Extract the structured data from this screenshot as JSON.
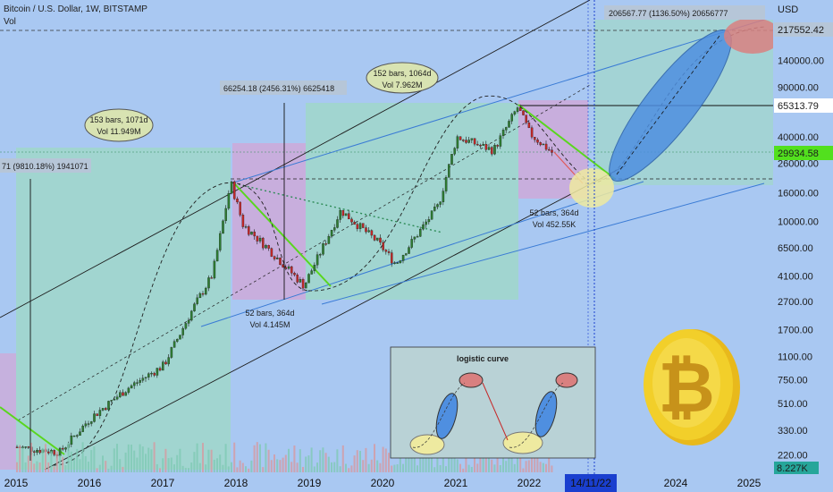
{
  "header": {
    "title": "Bitcoin / U.S. Dollar, 1W, BITSTAMP",
    "volume_label": "Vol"
  },
  "axis": {
    "currency": "USD",
    "price_ticks": [
      "140000.00",
      "90000.00",
      "40000.00",
      "26000.00",
      "16000.00",
      "10000.00",
      "6500.00",
      "4100.00",
      "2700.00",
      "1700.00",
      "1100.00",
      "750.00",
      "510.00",
      "330.00",
      "220.00"
    ],
    "price_tick_values": [
      140000,
      90000,
      40000,
      26000,
      16000,
      10000,
      6500,
      4100,
      2700,
      1700,
      1100,
      750,
      510,
      330,
      220
    ],
    "year_labels": [
      "2015",
      "2016",
      "2017",
      "2018",
      "2019",
      "2020",
      "2021",
      "2022",
      "2024",
      "2025"
    ],
    "date_highlight": "14/11/22"
  },
  "badges": {
    "top_target": "217552.42",
    "ath_line": "65313.79",
    "current_price": "29934.58",
    "volume_value": "8.227K"
  },
  "annotations": {
    "measure_2015": "71 (9810.18%) 1941071",
    "measure_2018": "66254.18 (2456.31%) 6625418",
    "measure_2024": "206567.77 (1136.50%) 20656777",
    "bubble_1": {
      "line1": "153 bars, 1071d",
      "line2": "Vol 11.949M"
    },
    "bubble_2": {
      "line1": "152 bars, 1064d",
      "line2": "Vol 7.962M"
    },
    "bear_2018": {
      "line1": "52 bars, 364d",
      "line2": "Vol 4.145M"
    },
    "bear_2022": {
      "line1": "52 bars, 364d",
      "line2": "Vol 452.55K"
    },
    "inset_title": "logistic curve"
  },
  "colors": {
    "background": "#a9c8f2",
    "up_candle": "#2e7d32",
    "down_candle": "#c62828",
    "green_zone": "#9fd9c4",
    "pink_zone": "#d3a6d6",
    "blue_ellipse": "#4f8fe0",
    "red_ellipse": "#d98080",
    "yellow_ellipse": "#eeeaa0",
    "coin_gold": "#f2cf2a"
  },
  "chart_data": {
    "type": "candlestick",
    "symbol": "Bitcoin / U.S. Dollar",
    "interval": "1W",
    "exchange": "BITSTAMP",
    "y_scale": "log",
    "ylim": [
      200,
      260000
    ],
    "current_price": 29934.58,
    "reference_levels": [
      217552.42,
      65313.79,
      29934.58
    ],
    "series": [
      {
        "name": "",
        "points": [
          {
            "x": "2015-01",
            "close": 250
          },
          {
            "x": "2015-08",
            "close": 230
          },
          {
            "x": "2016-01",
            "close": 400
          },
          {
            "x": "2016-07",
            "close": 650
          },
          {
            "x": "2017-01",
            "close": 950
          },
          {
            "x": "2017-06",
            "close": 2500
          },
          {
            "x": "2017-09",
            "close": 4200
          },
          {
            "x": "2017-12",
            "close": 19000
          },
          {
            "x": "2018-02",
            "close": 9500
          },
          {
            "x": "2018-06",
            "close": 6500
          },
          {
            "x": "2018-12",
            "close": 3500
          },
          {
            "x": "2019-06",
            "close": 12000
          },
          {
            "x": "2019-12",
            "close": 7200
          },
          {
            "x": "2020-03",
            "close": 5000
          },
          {
            "x": "2020-10",
            "close": 13000
          },
          {
            "x": "2021-01",
            "close": 40000
          },
          {
            "x": "2021-07",
            "close": 32000
          },
          {
            "x": "2021-11",
            "close": 65000
          },
          {
            "x": "2022-01",
            "close": 42000
          },
          {
            "x": "2022-05",
            "close": 29934
          }
        ]
      }
    ]
  }
}
